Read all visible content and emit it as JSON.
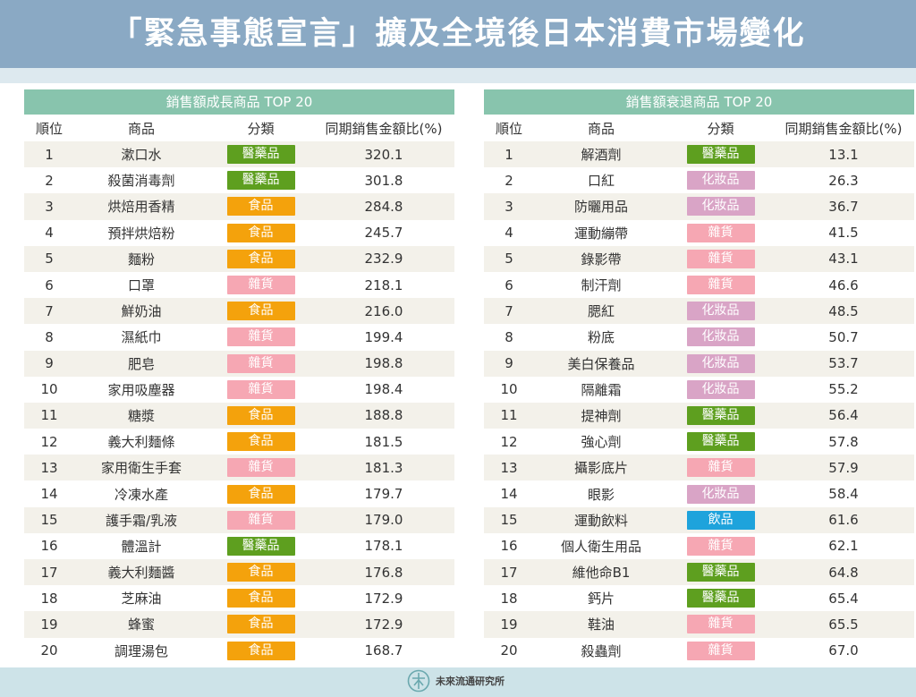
{
  "title": "「緊急事態宣言」擴及全境後日本消費市場變化",
  "colors": {
    "醫藥品": "#5e9f1f",
    "食品": "#f4a20c",
    "雜貨": "#f6a7b3",
    "化妝品": "#d9a4c6",
    "飲品": "#1ea3dc"
  },
  "columns": {
    "rank": "順位",
    "product": "商品",
    "category": "分類",
    "value": "同期銷售金額比(%)"
  },
  "left": {
    "header": "銷售額成長商品 TOP 20",
    "rows": [
      {
        "rank": "1",
        "product": "漱口水",
        "category": "醫藥品",
        "value": "320.1"
      },
      {
        "rank": "2",
        "product": "殺菌消毒劑",
        "category": "醫藥品",
        "value": "301.8"
      },
      {
        "rank": "3",
        "product": "烘焙用香精",
        "category": "食品",
        "value": "284.8"
      },
      {
        "rank": "4",
        "product": "預拌烘焙粉",
        "category": "食品",
        "value": "245.7"
      },
      {
        "rank": "5",
        "product": "麵粉",
        "category": "食品",
        "value": "232.9"
      },
      {
        "rank": "6",
        "product": "口罩",
        "category": "雜貨",
        "value": "218.1"
      },
      {
        "rank": "7",
        "product": "鮮奶油",
        "category": "食品",
        "value": "216.0"
      },
      {
        "rank": "8",
        "product": "濕紙巾",
        "category": "雜貨",
        "value": "199.4"
      },
      {
        "rank": "9",
        "product": "肥皂",
        "category": "雜貨",
        "value": "198.8"
      },
      {
        "rank": "10",
        "product": "家用吸塵器",
        "category": "雜貨",
        "value": "198.4"
      },
      {
        "rank": "11",
        "product": "糖漿",
        "category": "食品",
        "value": "188.8"
      },
      {
        "rank": "12",
        "product": "義大利麵條",
        "category": "食品",
        "value": "181.5"
      },
      {
        "rank": "13",
        "product": "家用衛生手套",
        "category": "雜貨",
        "value": "181.3"
      },
      {
        "rank": "14",
        "product": "冷凍水產",
        "category": "食品",
        "value": "179.7"
      },
      {
        "rank": "15",
        "product": "護手霜/乳液",
        "category": "雜貨",
        "value": "179.0"
      },
      {
        "rank": "16",
        "product": "體溫計",
        "category": "醫藥品",
        "value": "178.1"
      },
      {
        "rank": "17",
        "product": "義大利麵醬",
        "category": "食品",
        "value": "176.8"
      },
      {
        "rank": "18",
        "product": "芝麻油",
        "category": "食品",
        "value": "172.9"
      },
      {
        "rank": "19",
        "product": "蜂蜜",
        "category": "食品",
        "value": "172.9"
      },
      {
        "rank": "20",
        "product": "調理湯包",
        "category": "食品",
        "value": "168.7"
      }
    ]
  },
  "right": {
    "header": "銷售額衰退商品 TOP 20",
    "rows": [
      {
        "rank": "1",
        "product": "解酒劑",
        "category": "醫藥品",
        "value": "13.1"
      },
      {
        "rank": "2",
        "product": "口紅",
        "category": "化妝品",
        "value": "26.3"
      },
      {
        "rank": "3",
        "product": "防曬用品",
        "category": "化妝品",
        "value": "36.7"
      },
      {
        "rank": "4",
        "product": "運動繃帶",
        "category": "雜貨",
        "value": "41.5"
      },
      {
        "rank": "5",
        "product": "錄影帶",
        "category": "雜貨",
        "value": "43.1"
      },
      {
        "rank": "6",
        "product": "制汗劑",
        "category": "雜貨",
        "value": "46.6"
      },
      {
        "rank": "7",
        "product": "腮紅",
        "category": "化妝品",
        "value": "48.5"
      },
      {
        "rank": "8",
        "product": "粉底",
        "category": "化妝品",
        "value": "50.7"
      },
      {
        "rank": "9",
        "product": "美白保養品",
        "category": "化妝品",
        "value": "53.7"
      },
      {
        "rank": "10",
        "product": "隔離霜",
        "category": "化妝品",
        "value": "55.2"
      },
      {
        "rank": "11",
        "product": "提神劑",
        "category": "醫藥品",
        "value": "56.4"
      },
      {
        "rank": "12",
        "product": "強心劑",
        "category": "醫藥品",
        "value": "57.8"
      },
      {
        "rank": "13",
        "product": "攝影底片",
        "category": "雜貨",
        "value": "57.9"
      },
      {
        "rank": "14",
        "product": "眼影",
        "category": "化妝品",
        "value": "58.4"
      },
      {
        "rank": "15",
        "product": "運動飲料",
        "category": "飲品",
        "value": "61.6"
      },
      {
        "rank": "16",
        "product": "個人衛生用品",
        "category": "雜貨",
        "value": "62.1"
      },
      {
        "rank": "17",
        "product": "維他命B1",
        "category": "醫藥品",
        "value": "64.8"
      },
      {
        "rank": "18",
        "product": "鈣片",
        "category": "醫藥品",
        "value": "65.4"
      },
      {
        "rank": "19",
        "product": "鞋油",
        "category": "雜貨",
        "value": "65.5"
      },
      {
        "rank": "20",
        "product": "殺蟲劑",
        "category": "雜貨",
        "value": "67.0"
      }
    ]
  },
  "footer": {
    "logo_text": "未來流通研究所"
  }
}
